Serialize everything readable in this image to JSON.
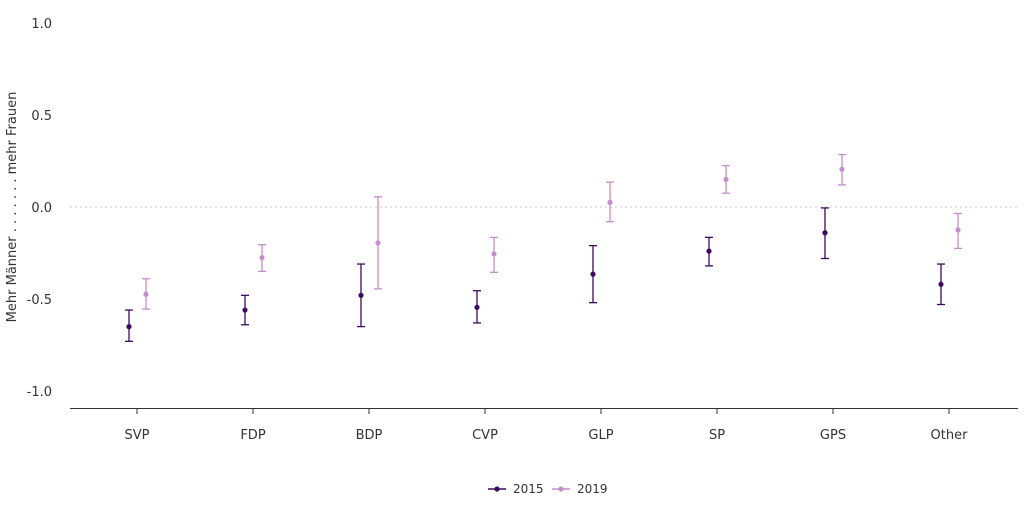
{
  "chart_data": {
    "type": "scatter",
    "ylabel": "Mehr Männer . . . . . . . mehr Frauen",
    "ylim": [
      -1.0,
      1.0
    ],
    "yticks": [
      "1.0",
      "0.5",
      "0.0",
      "-0.5",
      "-1.0"
    ],
    "categories": [
      "SVP",
      "FDP",
      "BDP",
      "CVP",
      "GLP",
      "SP",
      "GPS",
      "Other"
    ],
    "reference_line": 0,
    "series": [
      {
        "name": "2015",
        "color": "#3b0a5e",
        "values": [
          -0.65,
          -0.56,
          -0.48,
          -0.545,
          -0.365,
          -0.24,
          -0.14,
          -0.42
        ],
        "lower": [
          -0.73,
          -0.64,
          -0.65,
          -0.63,
          -0.52,
          -0.32,
          -0.28,
          -0.53
        ],
        "upper": [
          -0.56,
          -0.48,
          -0.31,
          -0.455,
          -0.21,
          -0.165,
          -0.005,
          -0.31
        ]
      },
      {
        "name": "2019",
        "color": "#c28fca",
        "values": [
          -0.475,
          -0.275,
          -0.195,
          -0.255,
          0.025,
          0.15,
          0.205,
          -0.125
        ],
        "lower": [
          -0.555,
          -0.35,
          -0.445,
          -0.355,
          -0.08,
          0.075,
          0.12,
          -0.225
        ],
        "upper": [
          -0.39,
          -0.205,
          0.055,
          -0.165,
          0.135,
          0.225,
          0.285,
          -0.035
        ]
      }
    ],
    "legend_position": "bottom-center",
    "grid": false
  }
}
